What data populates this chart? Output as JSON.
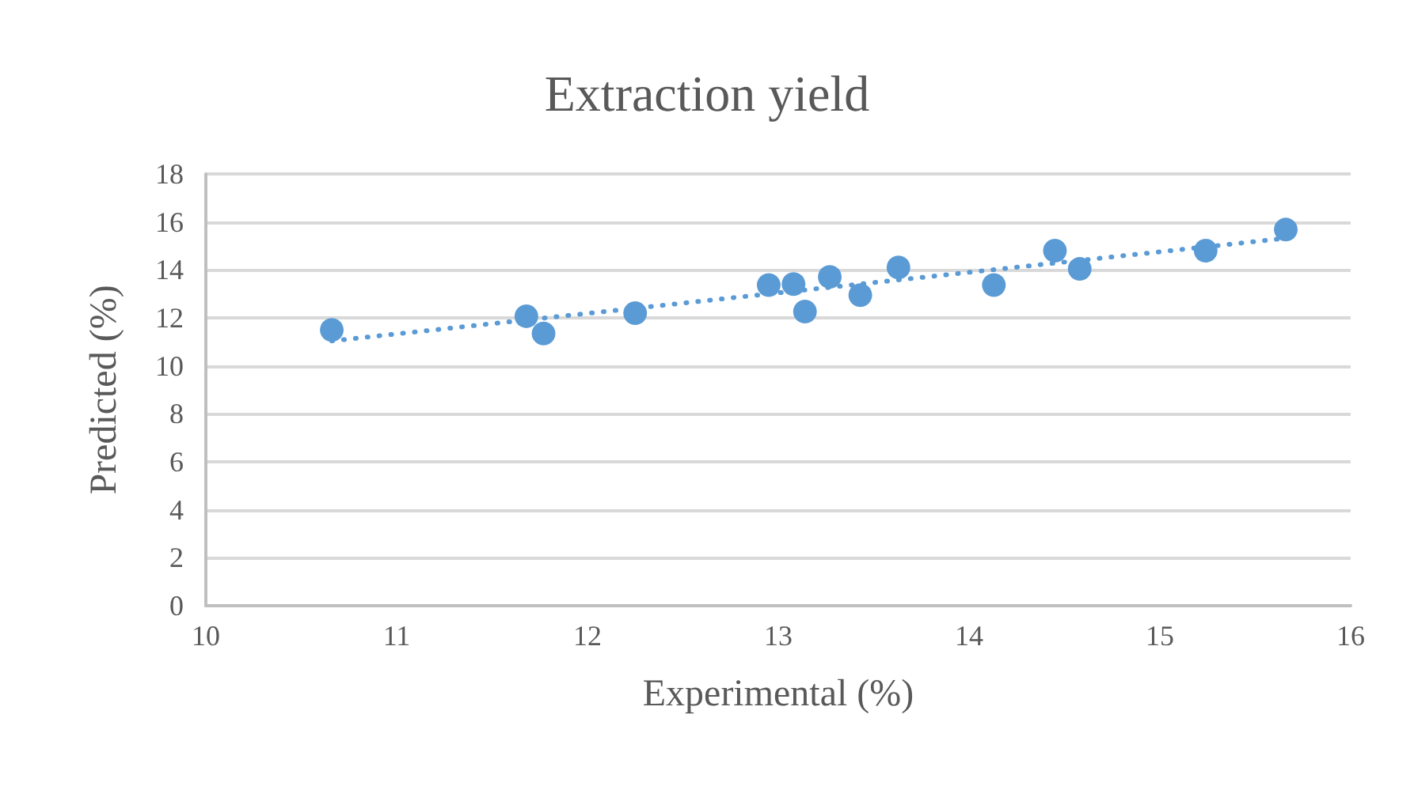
{
  "chart_data": {
    "type": "scatter",
    "title": "Extraction yield",
    "xlabel": "Experimental (%)",
    "ylabel": "Predicted (%)",
    "xlim": [
      10,
      16
    ],
    "xticks": [
      10,
      11,
      12,
      13,
      14,
      15,
      16
    ],
    "ylim": [
      0,
      18
    ],
    "yticks": [
      0,
      2,
      4,
      6,
      8,
      10,
      12,
      14,
      16,
      18
    ],
    "grid": "y",
    "series": [
      {
        "type": "scatter",
        "color": "#5b9bd5",
        "marker": "circle",
        "x": [
          10.66,
          11.68,
          11.77,
          12.25,
          12.95,
          13.08,
          13.14,
          13.27,
          13.43,
          13.63,
          14.13,
          14.45,
          14.58,
          15.24,
          15.66
        ],
        "values": [
          11.5,
          12.07,
          11.35,
          12.2,
          13.37,
          13.41,
          12.26,
          13.71,
          12.95,
          14.1,
          13.37,
          14.8,
          14.04,
          14.8,
          15.68
        ]
      },
      {
        "type": "line",
        "color": "#5b9bd5",
        "marker": "none",
        "line_style": "dotted",
        "x": [
          10.66,
          15.66
        ],
        "values": [
          11.04,
          15.32
        ]
      }
    ]
  }
}
